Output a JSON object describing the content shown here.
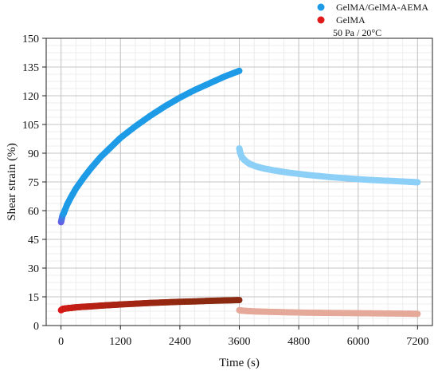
{
  "chart_data": {
    "type": "scatter",
    "title": "",
    "xlabel": "Time (s)",
    "ylabel": "Shear strain (%)",
    "xlim": [
      -300,
      7500
    ],
    "ylim": [
      0,
      150
    ],
    "x_ticks": [
      0,
      1200,
      2400,
      3600,
      4800,
      6000,
      7200
    ],
    "y_ticks": [
      0,
      15,
      30,
      45,
      60,
      75,
      90,
      105,
      120,
      135,
      150
    ],
    "grid": true,
    "minor_grid": true,
    "legend_position": "top-right",
    "annotation": "50 Pa / 20°C",
    "series": [
      {
        "name": "GelMA/GelMA-AEMA",
        "color": "#1e9be6",
        "creep": {
          "color": "#1e9be6",
          "start_color": "#6a5ce6",
          "x": [
            0,
            30,
            60,
            120,
            200,
            300,
            450,
            600,
            800,
            1000,
            1200,
            1500,
            1800,
            2100,
            2400,
            2700,
            3000,
            3300,
            3600
          ],
          "y": [
            54,
            57.5,
            59,
            63,
            67,
            71.5,
            77,
            82,
            88,
            93,
            98,
            104,
            109.5,
            114.5,
            119,
            123,
            126.5,
            130,
            133
          ]
        },
        "recovery": {
          "color": "#8ccff7",
          "x": [
            3600,
            3620,
            3650,
            3700,
            3800,
            3950,
            4100,
            4300,
            4600,
            5000,
            5400,
            5800,
            6200,
            6600,
            7000,
            7200
          ],
          "y": [
            92.5,
            90,
            88,
            86.5,
            84.5,
            83,
            82,
            81,
            79.8,
            78.6,
            77.6,
            76.8,
            76.1,
            75.6,
            75.1,
            74.8
          ]
        }
      },
      {
        "name": "GelMA",
        "color": "#e01919",
        "creep": {
          "color": "#e01919",
          "end_color": "#8b2a10",
          "x": [
            0,
            30,
            60,
            120,
            200,
            300,
            450,
            600,
            800,
            1000,
            1200,
            1500,
            1800,
            2100,
            2400,
            2700,
            3000,
            3300,
            3600
          ],
          "y": [
            8,
            8.6,
            8.8,
            9,
            9.2,
            9.5,
            9.8,
            10,
            10.4,
            10.7,
            11,
            11.4,
            11.8,
            12.1,
            12.4,
            12.6,
            12.9,
            13.1,
            13.3
          ]
        },
        "recovery": {
          "color": "#e5a99a",
          "x": [
            3600,
            3650,
            3800,
            4000,
            4300,
            4600,
            5000,
            5400,
            5800,
            6200,
            6600,
            7000,
            7200
          ],
          "y": [
            8,
            7.8,
            7.5,
            7.3,
            7.1,
            6.9,
            6.7,
            6.6,
            6.5,
            6.4,
            6.3,
            6.2,
            6.1
          ]
        }
      }
    ]
  }
}
